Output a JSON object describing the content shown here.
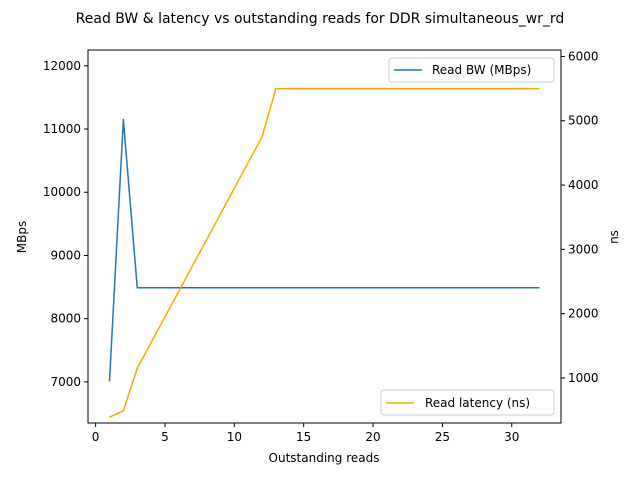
{
  "chart_data": {
    "type": "line",
    "title": "Read BW & latency vs outstanding reads for DDR simultaneous_wr_rd",
    "xlabel": "Outstanding reads",
    "ylabel_left": "MBps",
    "ylabel_right": "ns",
    "xlim": [
      -0.55,
      33.55
    ],
    "ylim_left": [
      6350,
      12250
    ],
    "ylim_right": [
      300,
      6100
    ],
    "x_ticks": [
      0,
      5,
      10,
      15,
      20,
      25,
      30
    ],
    "y_ticks_left": [
      7000,
      8000,
      9000,
      10000,
      11000,
      12000
    ],
    "y_ticks_right": [
      1000,
      2000,
      3000,
      4000,
      5000,
      6000
    ],
    "grid": false,
    "series": [
      {
        "name": "Read BW (MBps)",
        "axis": "left",
        "color": "#1f77b4",
        "legend_position": "upper right",
        "x": [
          1,
          2,
          3,
          4,
          5,
          6,
          7,
          8,
          9,
          10,
          11,
          12,
          13,
          14,
          15,
          16,
          17,
          18,
          19,
          20,
          21,
          22,
          23,
          24,
          25,
          26,
          27,
          28,
          29,
          30,
          31,
          32
        ],
        "y": [
          7010,
          11150,
          8490,
          8490,
          8490,
          8490,
          8490,
          8490,
          8490,
          8490,
          8490,
          8490,
          8490,
          8490,
          8490,
          8490,
          8490,
          8490,
          8490,
          8490,
          8490,
          8490,
          8490,
          8490,
          8490,
          8490,
          8490,
          8490,
          8490,
          8490,
          8490,
          8490
        ]
      },
      {
        "name": "Read latency (ns)",
        "axis": "right",
        "color": "#ffa500",
        "legend_position": "lower right",
        "x": [
          1,
          2,
          3,
          4,
          5,
          6,
          7,
          8,
          9,
          10,
          11,
          12,
          13,
          14,
          15,
          16,
          17,
          18,
          19,
          20,
          21,
          22,
          23,
          24,
          25,
          26,
          27,
          28,
          29,
          30,
          31,
          32
        ],
        "y": [
          390,
          490,
          1150,
          1550,
          1950,
          2350,
          2750,
          3150,
          3550,
          3950,
          4350,
          4750,
          5500,
          5500,
          5500,
          5500,
          5500,
          5500,
          5500,
          5500,
          5500,
          5500,
          5500,
          5500,
          5500,
          5500,
          5500,
          5500,
          5500,
          5500,
          5500,
          5500
        ]
      }
    ]
  }
}
